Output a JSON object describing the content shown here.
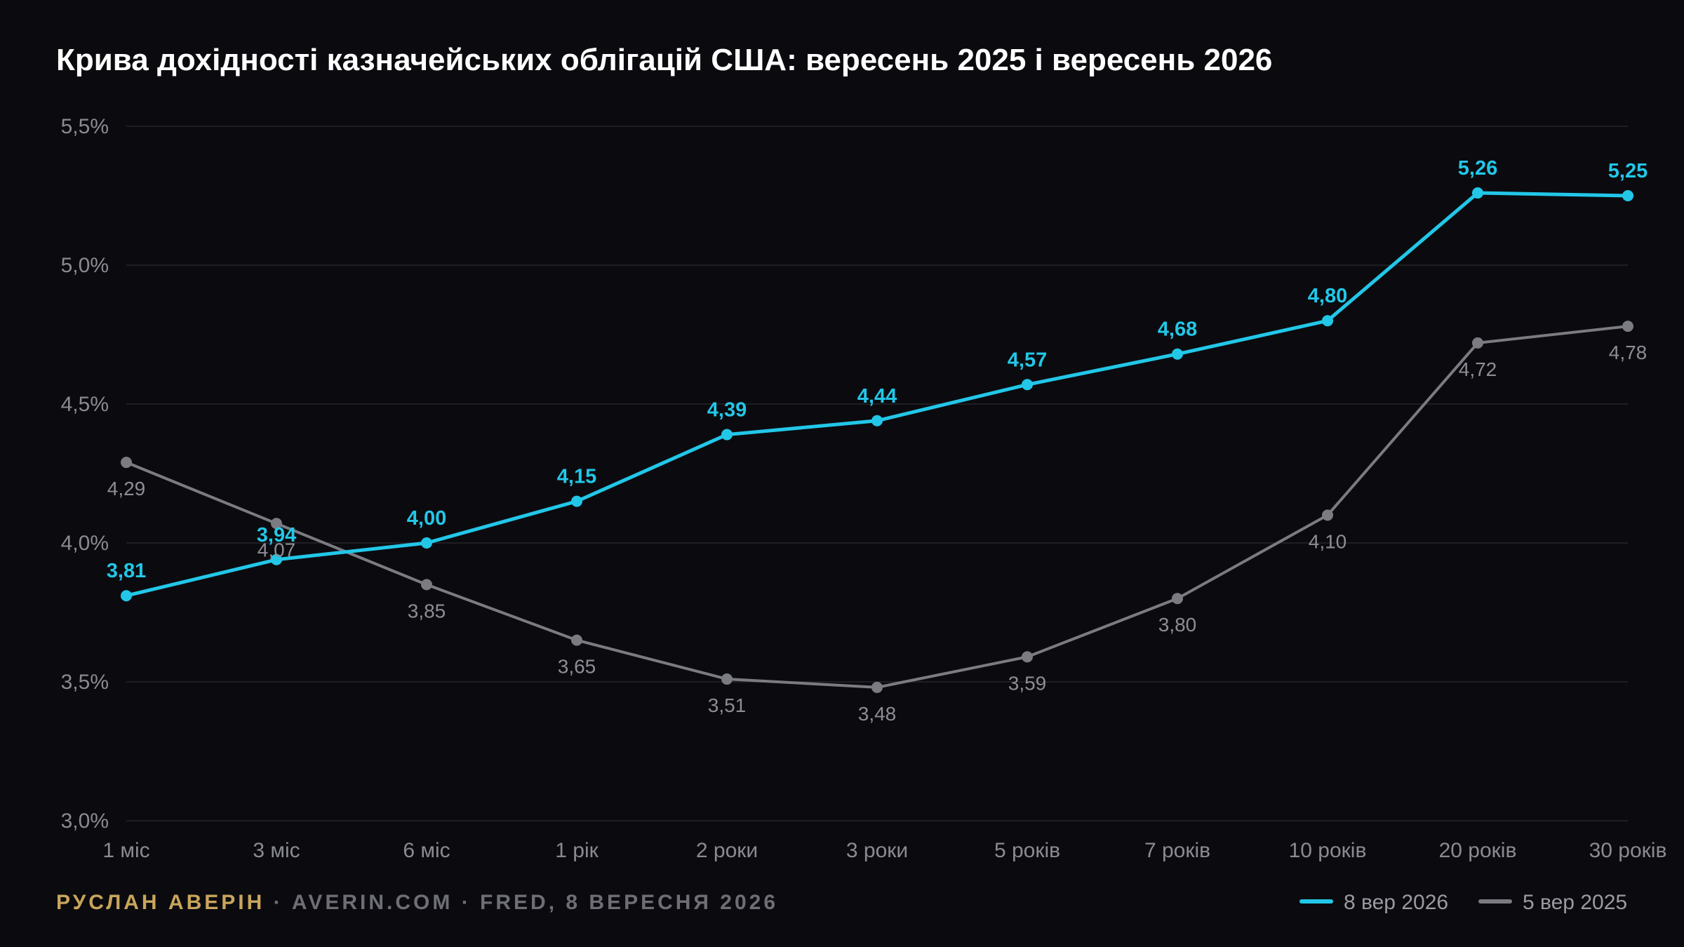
{
  "chart_data": {
    "type": "line",
    "title": "Крива дохідності казначейських облігацій США: вересень 2025 і вересень 2026",
    "categories": [
      "1 міс",
      "3 міс",
      "6 міс",
      "1 рік",
      "2 роки",
      "3 роки",
      "5 років",
      "7 років",
      "10 років",
      "20 років",
      "30 років"
    ],
    "y_ticks": [
      "3,0%",
      "3,5%",
      "4,0%",
      "4,5%",
      "5,0%",
      "5,5%"
    ],
    "ylim": [
      3.0,
      5.5
    ],
    "grid": true,
    "legend_position": "bottom-right",
    "series": [
      {
        "name": "8 вер 2026",
        "color": "#22c7e8",
        "values": [
          3.81,
          3.94,
          4.0,
          4.15,
          4.39,
          4.44,
          4.57,
          4.68,
          4.8,
          5.26,
          5.25
        ],
        "labels": [
          "3,81",
          "3,94",
          "4,00",
          "4,15",
          "4,39",
          "4,44",
          "4,57",
          "4,68",
          "4,80",
          "5,26",
          "5,25"
        ]
      },
      {
        "name": "5 вер 2025",
        "color": "#7b7b82",
        "values": [
          4.29,
          4.07,
          3.85,
          3.65,
          3.51,
          3.48,
          3.59,
          3.8,
          4.1,
          4.72,
          4.78
        ],
        "labels": [
          "4,29",
          "4,07",
          "3,85",
          "3,65",
          "3,51",
          "3,48",
          "3,59",
          "3,80",
          "4,10",
          "4,72",
          "4,78"
        ]
      }
    ]
  },
  "footer": {
    "author": "РУСЛАН АВЕРІН",
    "source": " · AVERIN.COM · FRED, 8 ВЕРЕСНЯ 2026",
    "author_color": "#c9a55c",
    "source_color": "#6e6e76"
  }
}
